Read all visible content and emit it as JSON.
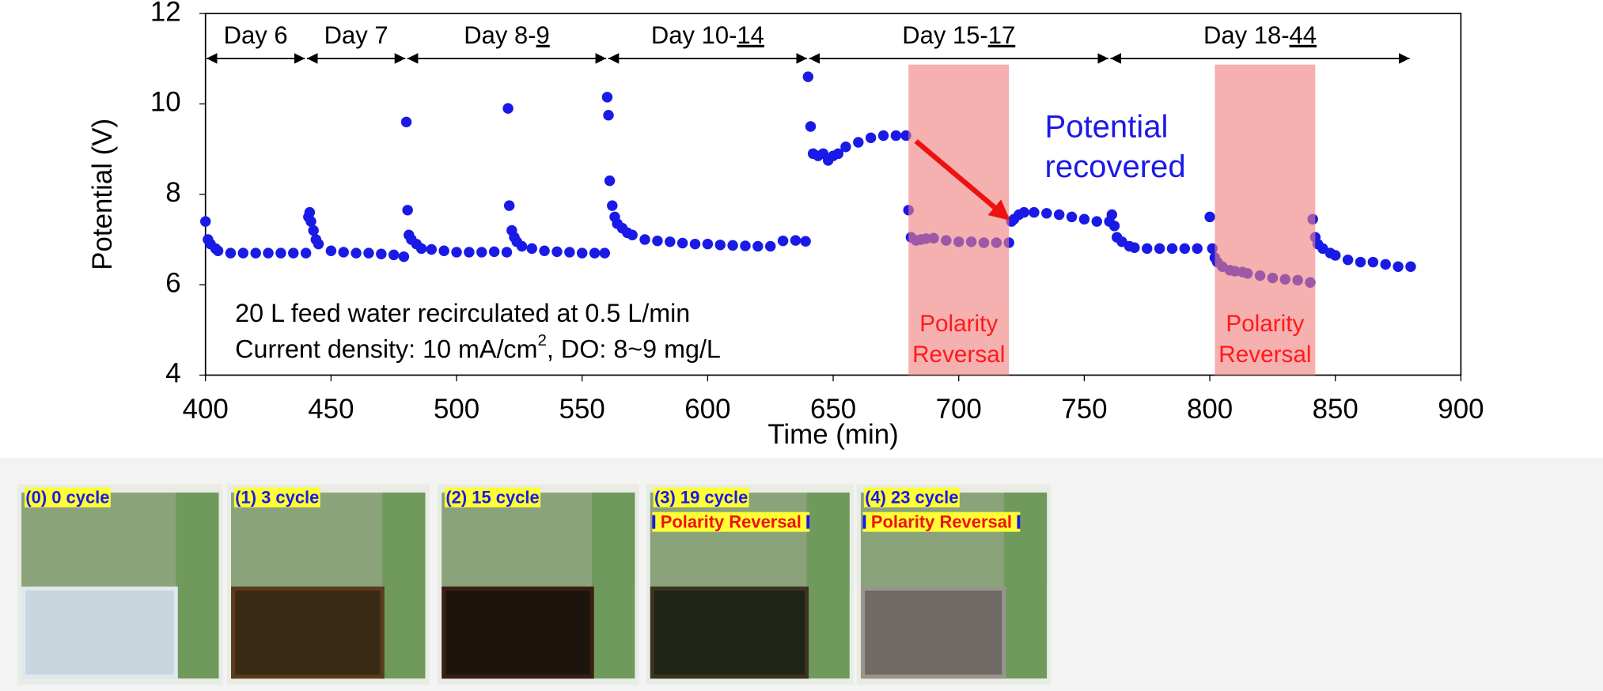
{
  "chart_data": {
    "type": "scatter",
    "x_label": "Time (min)",
    "y_label": "Potential (V)",
    "xlim": [
      400,
      900
    ],
    "ylim": [
      4,
      12
    ],
    "xticks": [
      400,
      450,
      500,
      550,
      600,
      650,
      700,
      750,
      800,
      850,
      900
    ],
    "yticks": [
      4,
      6,
      8,
      10,
      12
    ],
    "grid": false,
    "series": [
      {
        "color": "#1a1ae6",
        "x": [
          400,
          401,
          402,
          404,
          405,
          410,
          415,
          420,
          425,
          430,
          435,
          440,
          441,
          441.5,
          442,
          443,
          444,
          445,
          450,
          455,
          460,
          465,
          470,
          475,
          479,
          480,
          480.5,
          481,
          482,
          484,
          486,
          490,
          495,
          500,
          505,
          510,
          515,
          520,
          520.5,
          521,
          522,
          523,
          524,
          526,
          530,
          535,
          540,
          545,
          550,
          555,
          559,
          560,
          560.5,
          561,
          562,
          563,
          564,
          566,
          568,
          570,
          575,
          580,
          585,
          590,
          595,
          600,
          605,
          610,
          615,
          620,
          625,
          630,
          635,
          639,
          640,
          641,
          642,
          644,
          646,
          648,
          650,
          652,
          655,
          660,
          665,
          670,
          675,
          679,
          680,
          681,
          683,
          685,
          687,
          690,
          695,
          700,
          705,
          710,
          715,
          720,
          721,
          722,
          724,
          726,
          730,
          735,
          740,
          745,
          750,
          755,
          760,
          761,
          762,
          763,
          765,
          768,
          770,
          775,
          780,
          785,
          790,
          795,
          800,
          801,
          802,
          803,
          805,
          808,
          810,
          813,
          815,
          820,
          825,
          830,
          835,
          840,
          841,
          842,
          843,
          845,
          848,
          850,
          855,
          860,
          865,
          870,
          875,
          880
        ],
        "values": [
          7.4,
          7.0,
          6.9,
          6.8,
          6.75,
          6.7,
          6.7,
          6.7,
          6.7,
          6.7,
          6.7,
          6.7,
          7.5,
          7.6,
          7.4,
          7.2,
          7.0,
          6.9,
          6.75,
          6.72,
          6.7,
          6.7,
          6.68,
          6.66,
          6.62,
          9.6,
          7.65,
          7.1,
          7.0,
          6.9,
          6.8,
          6.78,
          6.75,
          6.72,
          6.72,
          6.72,
          6.73,
          6.72,
          9.9,
          7.75,
          7.2,
          7.05,
          6.95,
          6.85,
          6.8,
          6.75,
          6.73,
          6.72,
          6.7,
          6.7,
          6.7,
          10.15,
          9.75,
          8.3,
          7.75,
          7.5,
          7.35,
          7.25,
          7.15,
          7.1,
          7.0,
          6.97,
          6.95,
          6.92,
          6.9,
          6.9,
          6.88,
          6.87,
          6.86,
          6.85,
          6.85,
          6.97,
          6.98,
          6.96,
          10.6,
          9.5,
          8.9,
          8.85,
          8.9,
          8.75,
          8.85,
          8.9,
          9.05,
          9.15,
          9.25,
          9.3,
          9.3,
          9.3,
          7.65,
          7.05,
          6.98,
          7.0,
          7.02,
          7.03,
          6.98,
          6.95,
          6.95,
          6.93,
          6.93,
          6.93,
          7.4,
          7.45,
          7.55,
          7.6,
          7.6,
          7.58,
          7.55,
          7.5,
          7.45,
          7.4,
          7.4,
          7.55,
          7.3,
          7.05,
          6.95,
          6.85,
          6.82,
          6.8,
          6.8,
          6.8,
          6.8,
          6.8,
          7.5,
          6.8,
          6.6,
          6.5,
          6.4,
          6.32,
          6.3,
          6.28,
          6.25,
          6.2,
          6.15,
          6.12,
          6.1,
          6.05,
          7.45,
          7.05,
          6.9,
          6.8,
          6.7,
          6.65,
          6.55,
          6.5,
          6.5,
          6.45,
          6.4,
          6.4
        ]
      }
    ],
    "periods": [
      {
        "start": 400,
        "end": 440,
        "label": "Day 6"
      },
      {
        "start": 440,
        "end": 480,
        "label": "Day 7"
      },
      {
        "start": 480,
        "end": 560,
        "label": "Day 8-",
        "underlined": "9"
      },
      {
        "start": 560,
        "end": 640,
        "label": "Day 10-",
        "underlined": "14"
      },
      {
        "start": 640,
        "end": 760,
        "label": "Day 15-",
        "underlined": "17"
      },
      {
        "start": 760,
        "end": 880,
        "label": "Day 18-",
        "underlined": "44"
      }
    ],
    "shaded_regions": [
      {
        "start": 680,
        "end": 720,
        "label": [
          "Polarity",
          "Reversal"
        ]
      },
      {
        "start": 802,
        "end": 842,
        "label": [
          "Polarity",
          "Reversal"
        ]
      }
    ],
    "annotation": [
      "Potential",
      "recovered"
    ],
    "notes": [
      "20 L feed water recirculated at 0.5 L/min",
      "Current density: 10 mA/cm",
      "2",
      ", DO: 8~9 mg/L"
    ]
  },
  "photos": [
    {
      "label": "(0) 0 cycle"
    },
    {
      "label": "(1) 3 cycle"
    },
    {
      "label": "(2) 15 cycle"
    },
    {
      "label": "(3) 19 cycle",
      "sub": "Polarity Reversal"
    },
    {
      "label": "(4) 23 cycle",
      "sub": "Polarity Reversal"
    }
  ]
}
